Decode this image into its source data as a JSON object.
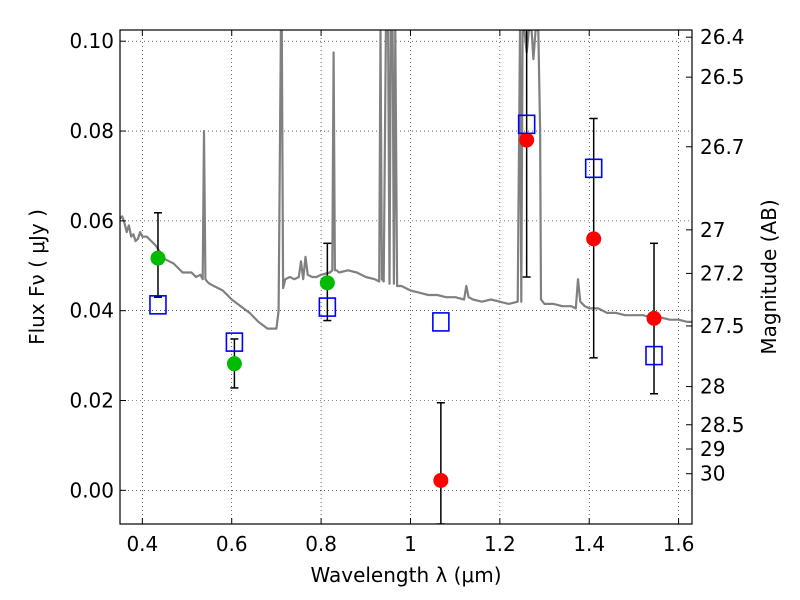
{
  "chart_data": {
    "type": "scatter",
    "title": "",
    "xlabel": "Wavelength  λ (μm)",
    "ylabel": "Flux  Fν  ( μJy )",
    "ylabel_right": "Magnitude (AB)",
    "xlim": [
      0.35,
      1.63
    ],
    "ylim": [
      -0.0075,
      0.1025
    ],
    "grid": true,
    "x_ticks": [
      0.4,
      0.6,
      0.8,
      1.0,
      1.2,
      1.4,
      1.6
    ],
    "x_tick_labels": [
      "0.4",
      "0.6",
      "0.8",
      "1",
      "1.2",
      "1.4",
      "1.6"
    ],
    "y_ticks": [
      0.0,
      0.02,
      0.04,
      0.06,
      0.08,
      0.1
    ],
    "y_tick_labels": [
      "0.00",
      "0.02",
      "0.04",
      "0.06",
      "0.08",
      "0.10"
    ],
    "magnitude_ticks": [
      {
        "label": "26.4",
        "flux": 0.1009
      },
      {
        "label": "26.5",
        "flux": 0.092
      },
      {
        "label": "26.7",
        "flux": 0.0765
      },
      {
        "label": "27",
        "flux": 0.058
      },
      {
        "label": "27.2",
        "flux": 0.0483
      },
      {
        "label": "27.5",
        "flux": 0.0366
      },
      {
        "label": "28",
        "flux": 0.0231
      },
      {
        "label": "28.5",
        "flux": 0.0146
      },
      {
        "label": "29",
        "flux": 0.0092
      },
      {
        "label": "30",
        "flux": 0.0037
      }
    ],
    "series": [
      {
        "marker": "circle",
        "color": "#00bb00",
        "points": [
          {
            "x": 0.435,
            "y": 0.0517,
            "ylo": 0.043,
            "yhi": 0.0618
          },
          {
            "x": 0.606,
            "y": 0.0282,
            "ylo": 0.0228,
            "yhi": 0.0337
          },
          {
            "x": 0.814,
            "y": 0.0462,
            "ylo": 0.0378,
            "yhi": 0.055
          }
        ]
      },
      {
        "marker": "circle",
        "color": "#ff0000",
        "points": [
          {
            "x": 1.068,
            "y": 0.0022,
            "ylo": -0.0075,
            "yhi": 0.0195
          },
          {
            "x": 1.26,
            "y": 0.078,
            "ylo": 0.0475,
            "yhi": 0.1025
          },
          {
            "x": 1.41,
            "y": 0.056,
            "ylo": 0.0295,
            "yhi": 0.0828
          },
          {
            "x": 1.545,
            "y": 0.0383,
            "ylo": 0.0215,
            "yhi": 0.055
          }
        ]
      },
      {
        "marker": "open-square",
        "color": "#0000ff",
        "points": [
          {
            "x": 0.435,
            "y": 0.0413
          },
          {
            "x": 0.606,
            "y": 0.033
          },
          {
            "x": 0.814,
            "y": 0.0408
          },
          {
            "x": 1.068,
            "y": 0.0375
          },
          {
            "x": 1.26,
            "y": 0.0815
          },
          {
            "x": 1.41,
            "y": 0.0717
          },
          {
            "x": 1.545,
            "y": 0.03
          }
        ]
      }
    ],
    "model_spectrum": {
      "color": "#808080",
      "x": [
        0.35,
        0.355,
        0.36,
        0.365,
        0.37,
        0.375,
        0.38,
        0.385,
        0.39,
        0.395,
        0.4,
        0.41,
        0.42,
        0.43,
        0.44,
        0.45,
        0.46,
        0.47,
        0.48,
        0.49,
        0.5,
        0.51,
        0.52,
        0.53,
        0.535,
        0.538,
        0.541,
        0.545,
        0.55,
        0.56,
        0.58,
        0.6,
        0.62,
        0.64,
        0.66,
        0.68,
        0.7,
        0.705,
        0.71,
        0.712,
        0.715,
        0.72,
        0.73,
        0.74,
        0.75,
        0.755,
        0.76,
        0.765,
        0.77,
        0.78,
        0.79,
        0.8,
        0.82,
        0.825,
        0.828,
        0.831,
        0.835,
        0.84,
        0.86,
        0.88,
        0.9,
        0.92,
        0.93,
        0.933,
        0.936,
        0.94,
        0.945,
        0.95,
        0.953,
        0.956,
        0.96,
        0.963,
        0.966,
        0.97,
        0.98,
        1.0,
        1.02,
        1.04,
        1.06,
        1.08,
        1.1,
        1.12,
        1.125,
        1.13,
        1.14,
        1.16,
        1.18,
        1.2,
        1.22,
        1.24,
        1.245,
        1.248,
        1.251,
        1.255,
        1.26,
        1.265,
        1.268,
        1.271,
        1.275,
        1.28,
        1.283,
        1.286,
        1.29,
        1.292,
        1.3,
        1.32,
        1.34,
        1.36,
        1.37,
        1.375,
        1.38,
        1.39,
        1.4,
        1.42,
        1.44,
        1.46,
        1.48,
        1.5,
        1.52,
        1.54,
        1.56,
        1.58,
        1.6,
        1.62,
        1.63
      ],
      "y": [
        0.0605,
        0.061,
        0.0595,
        0.0575,
        0.059,
        0.0565,
        0.057,
        0.0555,
        0.056,
        0.0575,
        0.0565,
        0.0565,
        0.0555,
        0.0545,
        0.053,
        0.0515,
        0.051,
        0.0505,
        0.0495,
        0.0485,
        0.0485,
        0.0485,
        0.0475,
        0.048,
        0.047,
        0.08,
        0.047,
        0.0465,
        0.046,
        0.0455,
        0.0445,
        0.0425,
        0.041,
        0.0395,
        0.0375,
        0.036,
        0.036,
        0.04,
        0.1025,
        0.1025,
        0.045,
        0.047,
        0.0475,
        0.047,
        0.0475,
        0.051,
        0.047,
        0.052,
        0.048,
        0.0475,
        0.0475,
        0.048,
        0.0485,
        0.049,
        0.0975,
        0.049,
        0.049,
        0.0485,
        0.049,
        0.0485,
        0.0475,
        0.047,
        0.0465,
        0.1025,
        0.047,
        0.0465,
        0.1025,
        0.1025,
        0.046,
        0.1025,
        0.1025,
        0.046,
        0.1025,
        0.0455,
        0.0455,
        0.0445,
        0.044,
        0.0435,
        0.0435,
        0.043,
        0.043,
        0.0425,
        0.0455,
        0.043,
        0.0425,
        0.042,
        0.0425,
        0.042,
        0.0415,
        0.042,
        0.1025,
        0.042,
        0.1025,
        0.1025,
        0.0975,
        0.1025,
        0.1025,
        0.1025,
        0.096,
        0.1025,
        0.1025,
        0.1025,
        0.0805,
        0.0425,
        0.0415,
        0.0415,
        0.041,
        0.041,
        0.0405,
        0.047,
        0.042,
        0.041,
        0.0405,
        0.0405,
        0.0395,
        0.0395,
        0.039,
        0.039,
        0.039,
        0.0385,
        0.0385,
        0.038,
        0.038,
        0.0375,
        0.0375
      ]
    }
  }
}
